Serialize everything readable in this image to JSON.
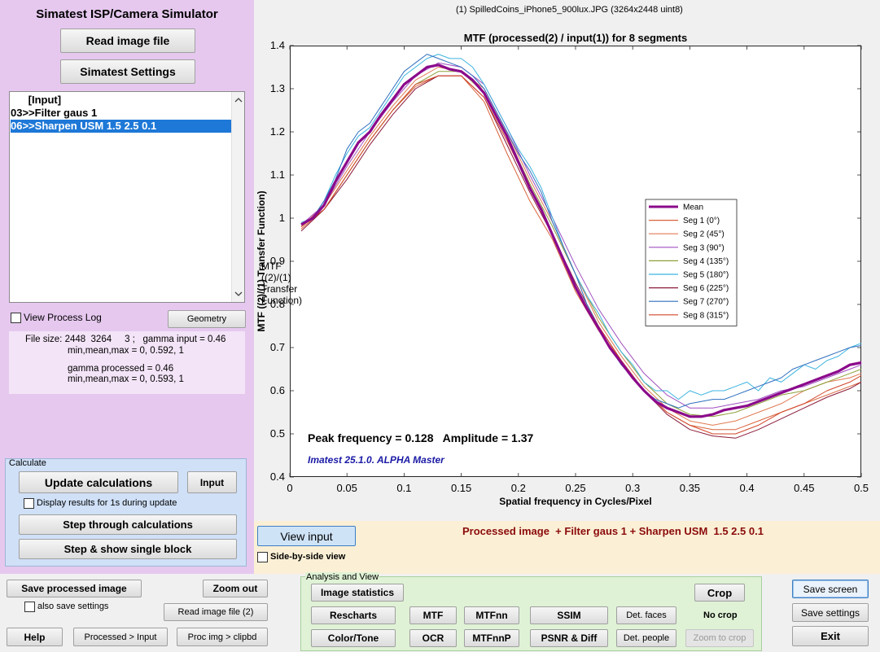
{
  "app": {
    "title": "Simatest ISP/Camera Simulator",
    "read_image_button": "Read image file",
    "settings_button": "Simatest Settings"
  },
  "process_list": {
    "items": [
      "      [Input]",
      "03>>Filter gaus 1",
      "06>>Sharpen USM 1.5 2.5 0.1"
    ],
    "selected_index": 2
  },
  "view_process_log": {
    "label": "View Process Log",
    "checked": false
  },
  "geometry_button": "Geometry",
  "file_info": {
    "line1": "File size: 2448  3264     3 ;   gamma input = 0.46",
    "line2": "min,mean,max = 0, 0.592, 1",
    "line3": "gamma processed = 0.46",
    "line4": "min,mean,max = 0, 0.593, 1"
  },
  "calculate": {
    "group_label": "Calculate",
    "update_button": "Update calculations",
    "input_button": "Input",
    "display_results_label": "Display results for 1s during update",
    "step_button": "Step through calculations",
    "step_single_button": "Step & show single block"
  },
  "file_title": "(1) SpilledCoins_iPhone5_900lux.JPG  (3264x2448  uint8)",
  "view_input_button": "View input",
  "side_by_side_label": "Side-by-side view",
  "status_text": "Processed image  + Filter gaus 1 + Sharpen USM  1.5 2.5 0.1",
  "bottom_left": {
    "save_processed": "Save processed image",
    "zoom_out": "Zoom out",
    "also_save_settings": "also save settings",
    "read_image_2": "Read image file (2)",
    "help": "Help",
    "processed_to_input": "Processed > Input",
    "proc_img_clipbd": "Proc img > clipbd"
  },
  "analysis": {
    "group_label": "Analysis and View",
    "image_statistics": "Image statistics",
    "crop": "Crop",
    "rescharts": "Rescharts",
    "mtf": "MTF",
    "mtfnn": "MTFnn",
    "ssim": "SSIM",
    "det_faces": "Det. faces",
    "no_crop": "No crop",
    "color_tone": "Color/Tone",
    "ocr": "OCR",
    "mtfnnp": "MTFnnP",
    "psnr_diff": "PSNR & Diff",
    "det_people": "Det. people",
    "zoom_to_crop": "Zoom to crop"
  },
  "right_buttons": {
    "save_screen": "Save screen",
    "save_settings": "Save settings",
    "exit": "Exit"
  },
  "colors": {
    "left_panel": "#e6c8ef",
    "calc_panel": "#cfe0f7",
    "analysis_panel": "#dff2d5",
    "status_panel": "#fbf0d6",
    "status_text": "#8b0a0a",
    "annotation_blue": "#1a1aa6"
  },
  "chart_data": {
    "type": "line",
    "title": "MTF (processed(2) / input(1)) for 8 segments",
    "xlabel": "Spatial frequency in Cycles/Pixel",
    "ylabel": "MTF  ((2)/(1) Transfer Function)",
    "xlim": [
      0,
      0.5
    ],
    "ylim": [
      0.4,
      1.4
    ],
    "xticks": [
      "0",
      "0.05",
      "0.1",
      "0.15",
      "0.2",
      "0.25",
      "0.3",
      "0.35",
      "0.4",
      "0.45",
      "0.5"
    ],
    "yticks": [
      "0.4",
      "0.5",
      "0.6",
      "0.7",
      "0.8",
      "0.9",
      "1",
      "1.1",
      "1.2",
      "1.3",
      "1.4"
    ],
    "grid": false,
    "legend_position": "right",
    "annotations": {
      "peak": "Peak frequency = 0.128   Amplitude = 1.37",
      "version": "Imatest 25.1.0. ALPHA Master"
    },
    "series": [
      {
        "name": "Mean",
        "color": "#8b0a8b",
        "width": 3.2,
        "x": [
          0.01,
          0.02,
          0.03,
          0.04,
          0.05,
          0.06,
          0.07,
          0.08,
          0.09,
          0.1,
          0.11,
          0.12,
          0.13,
          0.14,
          0.15,
          0.16,
          0.17,
          0.18,
          0.19,
          0.2,
          0.21,
          0.22,
          0.23,
          0.24,
          0.25,
          0.26,
          0.27,
          0.28,
          0.29,
          0.3,
          0.31,
          0.32,
          0.33,
          0.34,
          0.35,
          0.36,
          0.37,
          0.38,
          0.39,
          0.4,
          0.41,
          0.42,
          0.43,
          0.44,
          0.45,
          0.46,
          0.47,
          0.48,
          0.49,
          0.5
        ],
        "y": [
          0.985,
          1.0,
          1.03,
          1.085,
          1.13,
          1.175,
          1.2,
          1.24,
          1.275,
          1.31,
          1.33,
          1.35,
          1.355,
          1.345,
          1.34,
          1.32,
          1.29,
          1.24,
          1.19,
          1.13,
          1.07,
          1.02,
          0.96,
          0.9,
          0.84,
          0.79,
          0.745,
          0.7,
          0.665,
          0.63,
          0.6,
          0.575,
          0.56,
          0.55,
          0.54,
          0.54,
          0.545,
          0.555,
          0.56,
          0.565,
          0.575,
          0.585,
          0.595,
          0.605,
          0.615,
          0.625,
          0.635,
          0.645,
          0.66,
          0.665
        ]
      },
      {
        "name": "Seg 1 (0°)",
        "color": "#d9633a",
        "width": 1,
        "x": [
          0.01,
          0.03,
          0.05,
          0.07,
          0.09,
          0.11,
          0.13,
          0.15,
          0.17,
          0.19,
          0.21,
          0.23,
          0.25,
          0.27,
          0.29,
          0.31,
          0.33,
          0.35,
          0.37,
          0.39,
          0.41,
          0.43,
          0.45,
          0.47,
          0.49,
          0.5
        ],
        "y": [
          0.975,
          1.02,
          1.1,
          1.18,
          1.25,
          1.305,
          1.33,
          1.33,
          1.27,
          1.15,
          1.04,
          0.95,
          0.83,
          0.74,
          0.67,
          0.6,
          0.55,
          0.52,
          0.51,
          0.51,
          0.53,
          0.55,
          0.57,
          0.59,
          0.61,
          0.62
        ]
      },
      {
        "name": "Seg 2 (45°)",
        "color": "#e07a52",
        "width": 1,
        "x": [
          0.01,
          0.03,
          0.05,
          0.07,
          0.09,
          0.11,
          0.13,
          0.15,
          0.17,
          0.19,
          0.21,
          0.23,
          0.25,
          0.27,
          0.29,
          0.31,
          0.33,
          0.35,
          0.37,
          0.39,
          0.41,
          0.43,
          0.45,
          0.47,
          0.49,
          0.5
        ],
        "y": [
          0.98,
          1.03,
          1.11,
          1.19,
          1.26,
          1.32,
          1.35,
          1.34,
          1.3,
          1.2,
          1.09,
          0.99,
          0.87,
          0.76,
          0.68,
          0.61,
          0.56,
          0.53,
          0.52,
          0.53,
          0.55,
          0.57,
          0.6,
          0.62,
          0.63,
          0.64
        ]
      },
      {
        "name": "Seg 3 (90°)",
        "color": "#a050c0",
        "width": 1,
        "x": [
          0.01,
          0.03,
          0.05,
          0.07,
          0.09,
          0.11,
          0.13,
          0.15,
          0.17,
          0.19,
          0.21,
          0.23,
          0.25,
          0.27,
          0.29,
          0.31,
          0.33,
          0.35,
          0.37,
          0.39,
          0.41,
          0.43,
          0.45,
          0.47,
          0.49,
          0.5
        ],
        "y": [
          0.985,
          1.03,
          1.12,
          1.2,
          1.27,
          1.33,
          1.36,
          1.35,
          1.31,
          1.21,
          1.1,
          1.0,
          0.89,
          0.79,
          0.71,
          0.64,
          0.59,
          0.56,
          0.56,
          0.57,
          0.58,
          0.6,
          0.61,
          0.63,
          0.65,
          0.66
        ]
      },
      {
        "name": "Seg 4 (135°)",
        "color": "#8fa03a",
        "width": 1,
        "x": [
          0.01,
          0.03,
          0.05,
          0.07,
          0.09,
          0.11,
          0.13,
          0.15,
          0.17,
          0.19,
          0.21,
          0.23,
          0.25,
          0.27,
          0.29,
          0.31,
          0.33,
          0.35,
          0.37,
          0.39,
          0.41,
          0.43,
          0.45,
          0.47,
          0.49,
          0.5
        ],
        "y": [
          0.98,
          1.02,
          1.1,
          1.18,
          1.25,
          1.31,
          1.34,
          1.34,
          1.29,
          1.19,
          1.08,
          0.98,
          0.87,
          0.77,
          0.69,
          0.62,
          0.57,
          0.545,
          0.54,
          0.55,
          0.57,
          0.59,
          0.6,
          0.62,
          0.64,
          0.65
        ]
      },
      {
        "name": "Seg 5 (180°)",
        "color": "#3cb4e0",
        "width": 1,
        "x": [
          0.01,
          0.02,
          0.03,
          0.04,
          0.05,
          0.06,
          0.07,
          0.08,
          0.09,
          0.1,
          0.11,
          0.12,
          0.13,
          0.14,
          0.15,
          0.16,
          0.17,
          0.18,
          0.19,
          0.2,
          0.21,
          0.22,
          0.23,
          0.24,
          0.25,
          0.26,
          0.27,
          0.28,
          0.29,
          0.3,
          0.31,
          0.32,
          0.33,
          0.34,
          0.35,
          0.36,
          0.37,
          0.38,
          0.39,
          0.4,
          0.41,
          0.42,
          0.43,
          0.44,
          0.45,
          0.46,
          0.47,
          0.48,
          0.49,
          0.5
        ],
        "y": [
          0.99,
          1.0,
          1.04,
          1.1,
          1.15,
          1.19,
          1.21,
          1.25,
          1.29,
          1.33,
          1.35,
          1.37,
          1.38,
          1.37,
          1.37,
          1.35,
          1.31,
          1.26,
          1.21,
          1.16,
          1.12,
          1.07,
          1.0,
          0.93,
          0.87,
          0.82,
          0.78,
          0.73,
          0.69,
          0.66,
          0.62,
          0.6,
          0.6,
          0.58,
          0.6,
          0.59,
          0.6,
          0.6,
          0.61,
          0.62,
          0.6,
          0.63,
          0.62,
          0.64,
          0.66,
          0.65,
          0.67,
          0.68,
          0.7,
          0.71
        ]
      },
      {
        "name": "Seg 6 (225°)",
        "color": "#8b1a3a",
        "width": 1,
        "x": [
          0.01,
          0.03,
          0.05,
          0.07,
          0.09,
          0.11,
          0.13,
          0.15,
          0.17,
          0.19,
          0.21,
          0.23,
          0.25,
          0.27,
          0.29,
          0.31,
          0.33,
          0.35,
          0.37,
          0.39,
          0.41,
          0.43,
          0.45,
          0.47,
          0.49,
          0.5
        ],
        "y": [
          0.97,
          1.02,
          1.09,
          1.17,
          1.24,
          1.3,
          1.33,
          1.33,
          1.28,
          1.17,
          1.06,
          0.96,
          0.85,
          0.75,
          0.67,
          0.6,
          0.545,
          0.51,
          0.495,
          0.49,
          0.51,
          0.535,
          0.56,
          0.585,
          0.605,
          0.62
        ]
      },
      {
        "name": "Seg 7 (270°)",
        "color": "#2f6fbf",
        "width": 1,
        "x": [
          0.01,
          0.02,
          0.03,
          0.04,
          0.05,
          0.06,
          0.07,
          0.08,
          0.09,
          0.1,
          0.11,
          0.12,
          0.13,
          0.14,
          0.15,
          0.16,
          0.17,
          0.18,
          0.19,
          0.2,
          0.21,
          0.22,
          0.23,
          0.24,
          0.25,
          0.26,
          0.27,
          0.28,
          0.29,
          0.3,
          0.31,
          0.32,
          0.33,
          0.34,
          0.35,
          0.36,
          0.37,
          0.38,
          0.39,
          0.4,
          0.41,
          0.42,
          0.43,
          0.44,
          0.45,
          0.46,
          0.47,
          0.48,
          0.49,
          0.5
        ],
        "y": [
          0.985,
          1.0,
          1.04,
          1.09,
          1.16,
          1.2,
          1.22,
          1.26,
          1.3,
          1.34,
          1.36,
          1.38,
          1.37,
          1.36,
          1.35,
          1.33,
          1.3,
          1.25,
          1.2,
          1.15,
          1.11,
          1.06,
          0.99,
          0.93,
          0.87,
          0.8,
          0.75,
          0.7,
          0.66,
          0.63,
          0.6,
          0.58,
          0.57,
          0.56,
          0.57,
          0.575,
          0.58,
          0.58,
          0.59,
          0.6,
          0.61,
          0.62,
          0.63,
          0.65,
          0.66,
          0.67,
          0.68,
          0.69,
          0.7,
          0.705
        ]
      },
      {
        "name": "Seg 8 (315°)",
        "color": "#d2462a",
        "width": 1,
        "x": [
          0.01,
          0.03,
          0.05,
          0.07,
          0.09,
          0.11,
          0.13,
          0.15,
          0.17,
          0.19,
          0.21,
          0.23,
          0.25,
          0.27,
          0.29,
          0.31,
          0.33,
          0.35,
          0.37,
          0.39,
          0.41,
          0.43,
          0.45,
          0.47,
          0.49,
          0.5
        ],
        "y": [
          0.98,
          1.02,
          1.1,
          1.18,
          1.25,
          1.31,
          1.33,
          1.33,
          1.28,
          1.18,
          1.07,
          0.96,
          0.84,
          0.75,
          0.67,
          0.6,
          0.55,
          0.52,
          0.5,
          0.5,
          0.52,
          0.55,
          0.57,
          0.6,
          0.62,
          0.635
        ]
      }
    ]
  }
}
